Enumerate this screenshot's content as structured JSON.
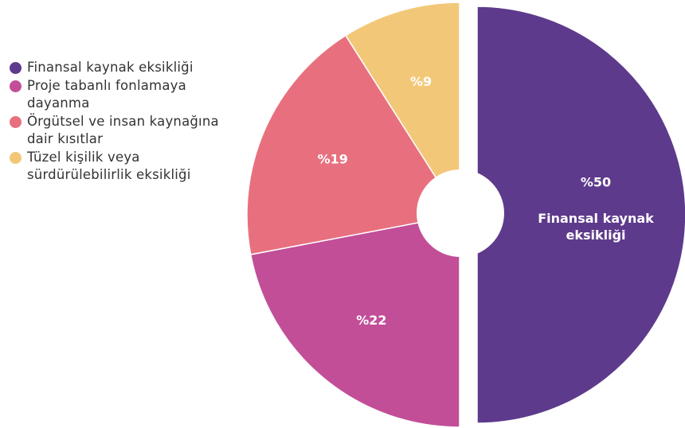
{
  "chart_data": {
    "type": "pie",
    "categories": [
      "Finansal kaynak eksikliği",
      "Proje tabanlı fonlamaya dayanma",
      "Örgütsel ve insan kaynağına dair kısıtlar",
      "Tüzel kişilik veya sürdürülebilirlik eksikliği"
    ],
    "values": [
      50,
      22,
      19,
      9
    ],
    "value_labels": [
      "%50",
      "%22",
      "%19",
      "%9"
    ],
    "colors": [
      "#5e3a8c",
      "#c24e98",
      "#e8707e",
      "#f2c878"
    ],
    "legend": "left"
  }
}
